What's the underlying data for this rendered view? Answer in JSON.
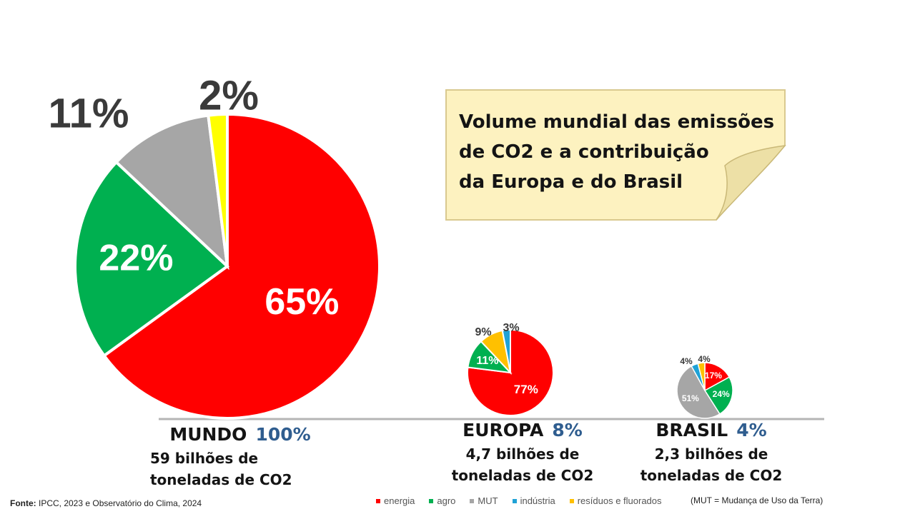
{
  "note": {
    "title": "Volume mundial das emissões\nde CO2 e a contribuição\nda Europa e do Brasil"
  },
  "colors": {
    "energia": "#ff0000",
    "agro": "#00b050",
    "MUT": "#a6a6a6",
    "industria": "#1fa2d6",
    "residuos": "#ffc000",
    "mundo_small": "#ffff00",
    "accent": "#2f5d8f"
  },
  "chart_data": [
    {
      "type": "pie",
      "name": "MUNDO",
      "share": "100%",
      "volume": "59 bilhões de\ntoneladas de CO2",
      "slices": [
        {
          "category": "energia",
          "value": 65,
          "label": "65%"
        },
        {
          "category": "agro",
          "value": 22,
          "label": "22%"
        },
        {
          "category": "MUT",
          "value": 11,
          "label": "11%"
        },
        {
          "category": "other",
          "value": 2,
          "label": "2%"
        }
      ]
    },
    {
      "type": "pie",
      "name": "EUROPA",
      "share": "8%",
      "volume": "4,7 bilhões de\ntoneladas de CO2",
      "slices": [
        {
          "category": "energia",
          "value": 77,
          "label": "77%"
        },
        {
          "category": "agro",
          "value": 11,
          "label": "11%"
        },
        {
          "category": "residuos",
          "value": 9,
          "label": "9%"
        },
        {
          "category": "industria",
          "value": 3,
          "label": "3%"
        }
      ]
    },
    {
      "type": "pie",
      "name": "BRASIL",
      "share": "4%",
      "volume": "2,3 bilhões de\ntoneladas de CO2",
      "slices": [
        {
          "category": "energia",
          "value": 17,
          "label": "17%"
        },
        {
          "category": "agro",
          "value": 24,
          "label": "24%"
        },
        {
          "category": "MUT",
          "value": 51,
          "label": "51%"
        },
        {
          "category": "industria",
          "value": 4,
          "label": "4%"
        },
        {
          "category": "residuos",
          "value": 4,
          "label": "4%"
        }
      ]
    }
  ],
  "legend": [
    {
      "label": "energia",
      "color": "#ff0000"
    },
    {
      "label": "agro",
      "color": "#00b050"
    },
    {
      "label": "MUT",
      "color": "#a6a6a6"
    },
    {
      "label": "indústria",
      "color": "#1fa2d6"
    },
    {
      "label": "resíduos e fluorados",
      "color": "#ffc000"
    }
  ],
  "source": {
    "prefix": "Fonte:",
    "text": " IPCC, 2023 e Observatório do Clima, 2024"
  },
  "mut_note": "(MUT = Mudança de Uso da Terra)"
}
